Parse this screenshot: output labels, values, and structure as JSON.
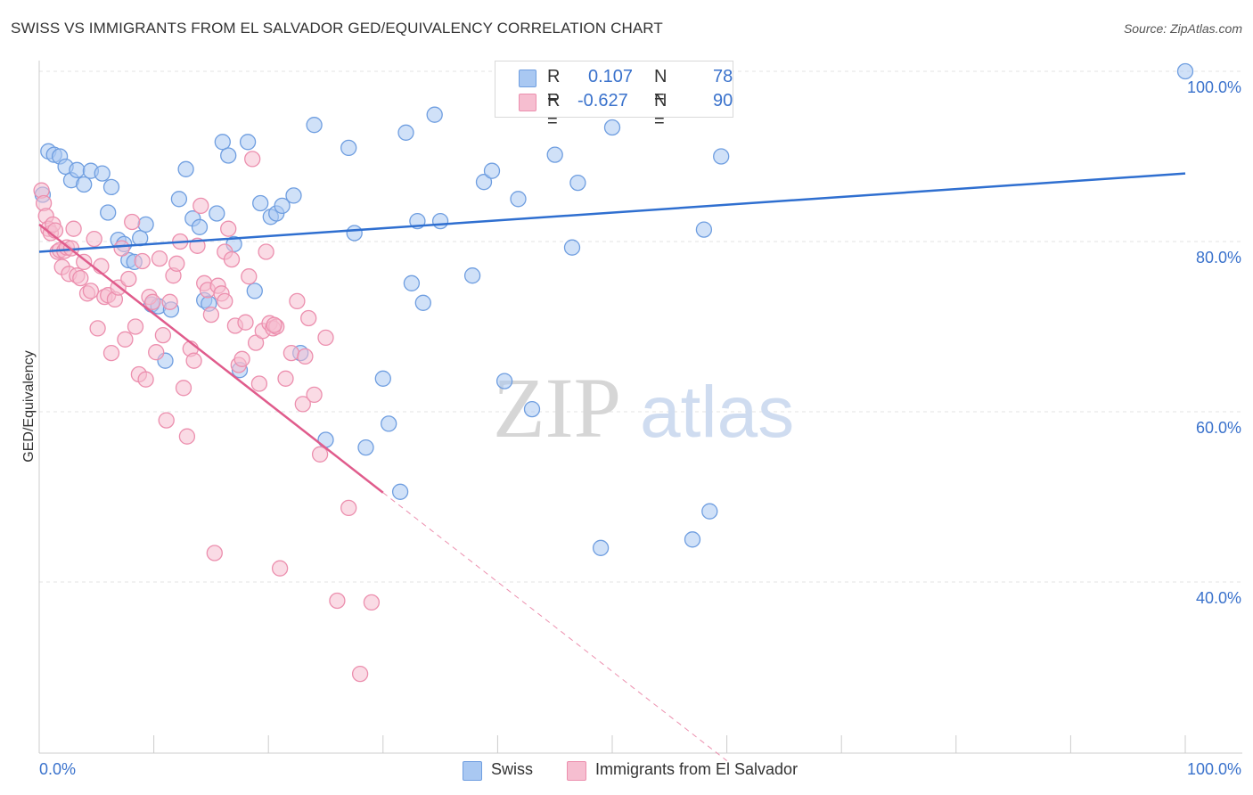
{
  "title": "SWISS VS IMMIGRANTS FROM EL SALVADOR GED/EQUIVALENCY CORRELATION CHART",
  "source": "Source: ZipAtlas.com",
  "watermark": {
    "zip": "ZIP",
    "atlas": "atlas"
  },
  "legend": {
    "r_label": "R =",
    "n_label": "N =",
    "swiss": {
      "r": "0.107",
      "n": "78"
    },
    "salvador": {
      "r": "-0.627",
      "n": "90"
    }
  },
  "colors": {
    "swiss_fill": "#a9c8f2",
    "swiss_stroke": "#6f9ee0",
    "swiss_line": "#2f6fd0",
    "salvador_fill": "#f6bed0",
    "salvador_stroke": "#ec8fae",
    "salvador_line": "#e05c8c",
    "axis_text": "#3a72cc",
    "grid": "#e3e3e3"
  },
  "chart_data": {
    "type": "scatter",
    "title": "SWISS VS IMMIGRANTS FROM EL SALVADOR GED/EQUIVALENCY CORRELATION CHART",
    "xlabel": "",
    "ylabel": "GED/Equivalency",
    "xlim": [
      0,
      100
    ],
    "ylim": [
      19,
      101
    ],
    "x_tick_labels": [
      "0.0%",
      "100.0%"
    ],
    "y_ticks": [
      40,
      60,
      80,
      100
    ],
    "y_tick_labels": [
      "40.0%",
      "60.0%",
      "80.0%",
      "100.0%"
    ],
    "grid": true,
    "legend_position": "bottom",
    "series": [
      {
        "name": "Swiss",
        "r": 0.107,
        "n": 78,
        "trend": {
          "x": [
            0,
            100
          ],
          "y": [
            78.8,
            88.0
          ]
        },
        "points": [
          [
            0.3,
            85.5
          ],
          [
            0.8,
            90.6
          ],
          [
            1.3,
            90.2
          ],
          [
            1.8,
            90.0
          ],
          [
            2.3,
            88.8
          ],
          [
            2.8,
            87.2
          ],
          [
            3.3,
            88.4
          ],
          [
            3.9,
            86.7
          ],
          [
            4.5,
            88.3
          ],
          [
            5.5,
            88.0
          ],
          [
            6.0,
            83.4
          ],
          [
            6.3,
            86.4
          ],
          [
            6.9,
            80.2
          ],
          [
            7.4,
            79.7
          ],
          [
            7.8,
            77.8
          ],
          [
            8.3,
            77.6
          ],
          [
            8.8,
            80.4
          ],
          [
            9.3,
            82.0
          ],
          [
            9.8,
            72.6
          ],
          [
            10.4,
            72.4
          ],
          [
            11.0,
            66.0
          ],
          [
            11.5,
            72.0
          ],
          [
            12.2,
            85.0
          ],
          [
            12.8,
            88.5
          ],
          [
            13.4,
            82.7
          ],
          [
            14.0,
            81.7
          ],
          [
            14.4,
            73.1
          ],
          [
            14.8,
            72.7
          ],
          [
            15.5,
            83.3
          ],
          [
            16.0,
            91.7
          ],
          [
            16.5,
            90.1
          ],
          [
            17.0,
            79.7
          ],
          [
            17.5,
            64.9
          ],
          [
            18.2,
            91.7
          ],
          [
            18.8,
            74.2
          ],
          [
            19.3,
            84.5
          ],
          [
            20.2,
            82.9
          ],
          [
            20.7,
            83.3
          ],
          [
            21.2,
            84.2
          ],
          [
            22.2,
            85.4
          ],
          [
            22.8,
            66.9
          ],
          [
            24.0,
            93.7
          ],
          [
            25.0,
            56.7
          ],
          [
            27.0,
            91.0
          ],
          [
            27.5,
            81.0
          ],
          [
            28.5,
            55.8
          ],
          [
            30.0,
            63.9
          ],
          [
            30.5,
            58.6
          ],
          [
            31.5,
            50.6
          ],
          [
            32.0,
            92.8
          ],
          [
            32.5,
            75.1
          ],
          [
            33.0,
            82.4
          ],
          [
            33.5,
            72.8
          ],
          [
            34.5,
            94.9
          ],
          [
            35.0,
            82.4
          ],
          [
            37.8,
            76.0
          ],
          [
            38.8,
            87.0
          ],
          [
            39.5,
            88.3
          ],
          [
            40.6,
            63.6
          ],
          [
            41.8,
            85.0
          ],
          [
            42.0,
            100.0
          ],
          [
            43.0,
            60.3
          ],
          [
            44.5,
            100.0
          ],
          [
            45.0,
            90.2
          ],
          [
            46.0,
            100.0
          ],
          [
            46.5,
            79.3
          ],
          [
            47.0,
            86.9
          ],
          [
            49.0,
            44.0
          ],
          [
            50.0,
            93.4
          ],
          [
            52.5,
            100.0
          ],
          [
            53.0,
            100.0
          ],
          [
            55.0,
            100.0
          ],
          [
            56.5,
            100.0
          ],
          [
            57.0,
            45.0
          ],
          [
            58.0,
            81.4
          ],
          [
            58.5,
            48.3
          ],
          [
            59.5,
            90.0
          ],
          [
            100.0,
            100.0
          ]
        ]
      },
      {
        "name": "Immigrants from El Salvador",
        "r": -0.627,
        "n": 90,
        "trend": {
          "x": [
            0,
            30
          ],
          "y": [
            82.0,
            50.5
          ]
        },
        "trend_dashed": {
          "x": [
            30,
            60
          ],
          "y": [
            50.5,
            19.0
          ]
        },
        "points": [
          [
            0.2,
            86.0
          ],
          [
            0.4,
            84.5
          ],
          [
            0.6,
            83.0
          ],
          [
            0.8,
            81.5
          ],
          [
            1.0,
            81.0
          ],
          [
            1.2,
            82.0
          ],
          [
            1.4,
            81.3
          ],
          [
            1.6,
            78.8
          ],
          [
            1.8,
            79.0
          ],
          [
            2.0,
            77.0
          ],
          [
            2.2,
            78.9
          ],
          [
            2.4,
            79.3
          ],
          [
            2.6,
            76.2
          ],
          [
            2.8,
            79.2
          ],
          [
            3.0,
            81.5
          ],
          [
            3.3,
            76.0
          ],
          [
            3.6,
            75.7
          ],
          [
            3.9,
            77.6
          ],
          [
            4.2,
            73.9
          ],
          [
            4.5,
            74.2
          ],
          [
            4.8,
            80.3
          ],
          [
            5.1,
            69.8
          ],
          [
            5.4,
            77.1
          ],
          [
            5.7,
            73.5
          ],
          [
            6.0,
            73.7
          ],
          [
            6.3,
            66.9
          ],
          [
            6.6,
            73.2
          ],
          [
            6.9,
            74.6
          ],
          [
            7.2,
            79.2
          ],
          [
            7.5,
            68.5
          ],
          [
            7.8,
            75.6
          ],
          [
            8.1,
            82.3
          ],
          [
            8.4,
            70.0
          ],
          [
            8.7,
            64.4
          ],
          [
            9.0,
            77.7
          ],
          [
            9.3,
            63.8
          ],
          [
            9.6,
            73.5
          ],
          [
            9.9,
            72.9
          ],
          [
            10.2,
            67.0
          ],
          [
            10.5,
            78.0
          ],
          [
            10.8,
            69.0
          ],
          [
            11.1,
            59.0
          ],
          [
            11.4,
            72.9
          ],
          [
            11.7,
            76.0
          ],
          [
            12.0,
            77.4
          ],
          [
            12.3,
            80.0
          ],
          [
            12.6,
            62.8
          ],
          [
            12.9,
            57.1
          ],
          [
            13.2,
            67.4
          ],
          [
            13.5,
            66.0
          ],
          [
            13.8,
            79.5
          ],
          [
            14.1,
            84.2
          ],
          [
            14.4,
            75.1
          ],
          [
            14.7,
            74.3
          ],
          [
            15.0,
            71.4
          ],
          [
            15.3,
            43.4
          ],
          [
            15.6,
            74.8
          ],
          [
            15.9,
            73.9
          ],
          [
            16.2,
            78.8
          ],
          [
            16.5,
            81.5
          ],
          [
            16.8,
            77.9
          ],
          [
            17.1,
            70.1
          ],
          [
            17.4,
            65.5
          ],
          [
            17.7,
            66.2
          ],
          [
            18.0,
            70.5
          ],
          [
            18.3,
            75.9
          ],
          [
            18.6,
            89.7
          ],
          [
            18.9,
            68.1
          ],
          [
            19.2,
            63.3
          ],
          [
            19.5,
            69.5
          ],
          [
            19.8,
            78.8
          ],
          [
            20.1,
            70.4
          ],
          [
            20.4,
            69.8
          ],
          [
            20.7,
            70.0
          ],
          [
            21.0,
            41.6
          ],
          [
            21.5,
            63.9
          ],
          [
            22.0,
            66.9
          ],
          [
            22.5,
            73.0
          ],
          [
            23.0,
            60.9
          ],
          [
            23.5,
            71.0
          ],
          [
            24.0,
            62.0
          ],
          [
            24.5,
            55.0
          ],
          [
            25.0,
            68.7
          ],
          [
            26.0,
            37.8
          ],
          [
            27.0,
            48.7
          ],
          [
            28.0,
            29.2
          ],
          [
            29.0,
            37.6
          ],
          [
            23.2,
            66.5
          ],
          [
            16.2,
            73.0
          ],
          [
            20.5,
            70.2
          ]
        ]
      }
    ]
  }
}
